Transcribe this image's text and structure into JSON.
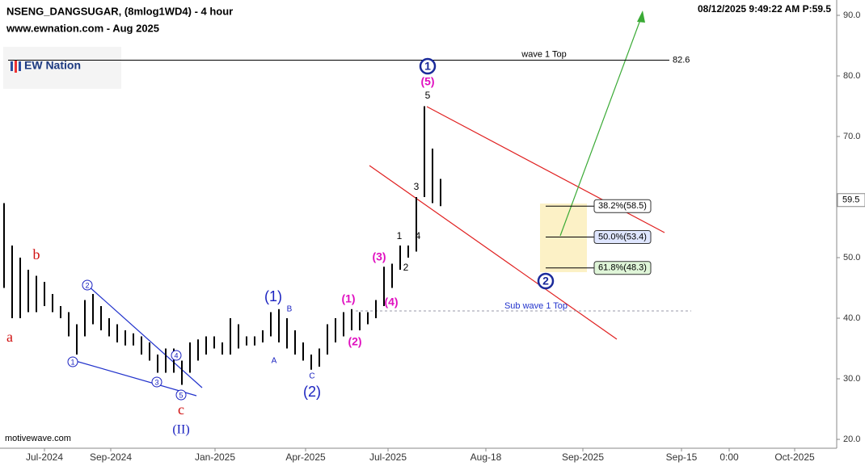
{
  "chart_data": {
    "type": "ohlc",
    "title": "NSENG_DANGSUGAR, (8mlog1WD4) - 4 hour",
    "subtitle": "www.ewnation.com  - Aug 2025",
    "timestamp": "08/12/2025 9:49:22 AM  P:59.5",
    "logo": "EW Nation",
    "watermark": "motivewave.com",
    "color": "#000000",
    "x": [
      1,
      3,
      5,
      7,
      9,
      11,
      13,
      15,
      17,
      19,
      21,
      23,
      25,
      27,
      29,
      31,
      33,
      35,
      37,
      39,
      41,
      43,
      45,
      47,
      49,
      51,
      53,
      55,
      57,
      59,
      61,
      63,
      65,
      67,
      69,
      71,
      73,
      75,
      77,
      79,
      81,
      83,
      85,
      87,
      89,
      91,
      93,
      95,
      97,
      99,
      101,
      103,
      105,
      107,
      109
    ],
    "high": [
      59,
      52,
      50,
      48,
      47,
      46,
      44,
      42,
      41,
      39,
      43,
      44,
      42,
      40,
      39,
      38,
      37.5,
      37,
      36,
      34,
      35,
      35,
      33,
      36,
      36.5,
      37,
      37,
      36,
      40,
      39,
      37,
      37,
      38,
      41,
      41.5,
      40,
      38,
      36,
      34,
      35,
      39,
      40,
      41,
      41.5,
      41,
      41,
      43,
      48.5,
      49,
      52,
      52,
      60,
      75,
      68,
      63
    ],
    "low": [
      45,
      40,
      40,
      41,
      41,
      42,
      41,
      40,
      37,
      34,
      37,
      39,
      38,
      37,
      36,
      35.5,
      35.5,
      34,
      33,
      31,
      31,
      31,
      29,
      31,
      33,
      34,
      35,
      34,
      34,
      35,
      35.5,
      35.5,
      36,
      37,
      36,
      35,
      34,
      33,
      31.5,
      32,
      34,
      36,
      37,
      38,
      38,
      39,
      40,
      42,
      45,
      48,
      50,
      51,
      60,
      59,
      58.5
    ],
    "xlim": [
      0,
      207
    ],
    "ylim": [
      18.27,
      92.53
    ],
    "xticks": [
      {
        "value": 11,
        "label": "Jul-2024"
      },
      {
        "value": 27.4,
        "label": "Sep-2024"
      },
      {
        "value": 53.2,
        "label": "Jan-2025"
      },
      {
        "value": 75.6,
        "label": "Apr-2025"
      },
      {
        "value": 96,
        "label": "Jul-2025"
      },
      {
        "value": 120.2,
        "label": "Aug-18"
      },
      {
        "value": 144.2,
        "label": "Sep-2025"
      },
      {
        "value": 168.6,
        "label": "Sep-15"
      },
      {
        "value": 180.4,
        "label": "0:00"
      },
      {
        "value": 196.6,
        "label": "Oct-2025"
      }
    ],
    "yticks": [
      {
        "value": 20,
        "label": "20.0"
      },
      {
        "value": 30,
        "label": "30.0"
      },
      {
        "value": 40,
        "label": "40.0"
      },
      {
        "value": 50,
        "label": "50.0"
      },
      {
        "value": 60,
        "label": "60.0"
      },
      {
        "value": 70,
        "label": "70.0"
      },
      {
        "value": 80,
        "label": "80.0"
      },
      {
        "value": 90,
        "label": "90.0"
      }
    ],
    "last_price": {
      "value": 59.5,
      "label": "59.5"
    },
    "top_level": {
      "label": "wave 1 Top",
      "value": 82.6
    },
    "sub_level": {
      "label": "Sub wave 1 Top",
      "value": 41.2
    },
    "fib": [
      {
        "value": 58.5,
        "label": "38.2%(58.5)"
      },
      {
        "value": 53.4,
        "label": "50.0%(53.4)"
      },
      {
        "value": 48.3,
        "label": "61.8%(48.3)"
      }
    ],
    "annotations": [
      "a",
      "b",
      "c",
      "(II)",
      "1",
      "2",
      "3",
      "4",
      "5",
      "(1)",
      "A",
      "B",
      "C",
      "(2)",
      "(1)",
      "(2)",
      "(3)",
      "(4)",
      "(5)",
      "1",
      "2",
      "3",
      "4",
      "5",
      "1",
      "2"
    ]
  }
}
